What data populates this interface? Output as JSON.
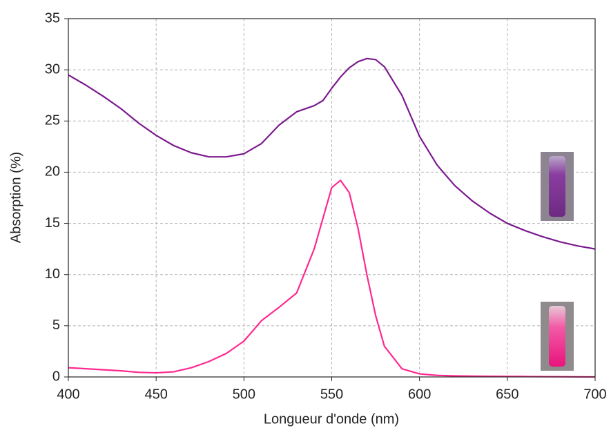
{
  "chart_data": {
    "type": "line",
    "x_label": "Longueur d'onde (nm)",
    "y_label": "Absorption (%)",
    "x": [
      400,
      410,
      420,
      430,
      440,
      450,
      460,
      470,
      480,
      490,
      500,
      510,
      520,
      530,
      540,
      545,
      550,
      555,
      560,
      565,
      570,
      575,
      580,
      590,
      600,
      610,
      620,
      630,
      640,
      650,
      660,
      670,
      680,
      690,
      700
    ],
    "series": [
      {
        "color": "#7b1a8e",
        "values": [
          29.5,
          28.5,
          27.4,
          26.2,
          24.8,
          23.6,
          22.6,
          21.9,
          21.5,
          21.5,
          21.8,
          22.8,
          24.6,
          25.9,
          26.5,
          27.0,
          28.2,
          29.3,
          30.2,
          30.8,
          31.1,
          31.0,
          30.3,
          27.5,
          23.5,
          20.7,
          18.7,
          17.2,
          16.0,
          15.0,
          14.3,
          13.7,
          13.2,
          12.8,
          12.5
        ]
      },
      {
        "color": "#ff2890",
        "values": [
          0.9,
          0.8,
          0.7,
          0.6,
          0.45,
          0.4,
          0.5,
          0.9,
          1.5,
          2.3,
          3.5,
          5.5,
          6.8,
          8.2,
          12.5,
          15.5,
          18.5,
          19.2,
          18.0,
          14.5,
          10.0,
          6.0,
          3.0,
          0.8,
          0.3,
          0.15,
          0.1,
          0.08,
          0.06,
          0.05,
          0.04,
          0.03,
          0.02,
          0.01,
          0.0
        ]
      }
    ],
    "xlim": [
      400,
      700
    ],
    "xticks": [
      400,
      450,
      500,
      550,
      600,
      650,
      700
    ],
    "ylim": [
      0,
      35
    ],
    "yticks": [
      0,
      5,
      10,
      15,
      20,
      25,
      30,
      35
    ],
    "grid": true
  }
}
